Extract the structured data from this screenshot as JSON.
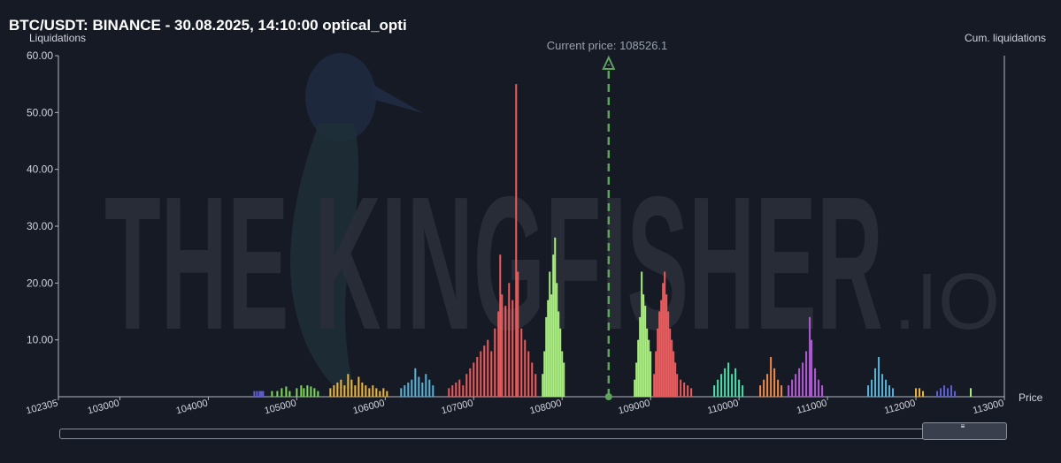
{
  "header": {
    "title": "BTC/USDT: BINANCE - 30.08.2025, 14:10:00 optical_opti"
  },
  "axes": {
    "y_label": "Liquidations",
    "y2_label": "Cum. liquidations",
    "x_label": "Price"
  },
  "watermark": {
    "text": "THE KINGFISHER",
    "suffix": ".IO"
  },
  "current_price_label": "Current price: 108526.1",
  "chart_data": {
    "type": "bar",
    "title": "BTC/USDT: BINANCE - 30.08.2025, 14:10:00 optical_opti",
    "xlabel": "Price",
    "ylabel": "Liquidations",
    "y2label": "Cum. liquidations",
    "xlim": [
      102305,
      113000
    ],
    "ylim": [
      0,
      60
    ],
    "yticks": [
      "10.00",
      "20.00",
      "30.00",
      "40.00",
      "50.00",
      "60.00"
    ],
    "xticks": [
      "102305",
      "103000",
      "104000",
      "105000",
      "106000",
      "107000",
      "108000",
      "109000",
      "110000",
      "111000",
      "112000",
      "113000"
    ],
    "current_price": 108526.1,
    "colors": {
      "purple_blue": "#5d5fd6",
      "green": "#7ed957",
      "yellow": "#f0b73a",
      "blue": "#5ab4d8",
      "red": "#f05a5a",
      "light_green": "#a8f07a",
      "teal": "#4fe0a8",
      "orange": "#f08a4a",
      "violet": "#b45ad8",
      "current_price": "#5fa35f"
    },
    "clusters": [
      {
        "color": "purple_blue",
        "points": [
          [
            104520,
            1
          ],
          [
            104550,
            1
          ],
          [
            104580,
            1
          ],
          [
            104600,
            1
          ],
          [
            104620,
            1
          ]
        ]
      },
      {
        "color": "green",
        "points": [
          [
            104720,
            1
          ],
          [
            104780,
            1
          ],
          [
            104830,
            1.5
          ],
          [
            104880,
            1.8
          ],
          [
            104920,
            1
          ],
          [
            105000,
            1.5
          ],
          [
            105050,
            2
          ],
          [
            105080,
            1.5
          ],
          [
            105120,
            2
          ],
          [
            105160,
            1.8
          ],
          [
            105200,
            1.5
          ],
          [
            105240,
            1
          ]
        ]
      },
      {
        "color": "yellow",
        "points": [
          [
            105380,
            1.5
          ],
          [
            105420,
            2
          ],
          [
            105460,
            2.5
          ],
          [
            105500,
            3
          ],
          [
            105540,
            2
          ],
          [
            105580,
            4
          ],
          [
            105620,
            3
          ],
          [
            105660,
            2
          ],
          [
            105700,
            3.5
          ],
          [
            105740,
            2.5
          ],
          [
            105780,
            2
          ],
          [
            105820,
            1.5
          ],
          [
            105860,
            2
          ],
          [
            105900,
            1.5
          ],
          [
            105940,
            1
          ],
          [
            105980,
            1.5
          ],
          [
            106020,
            1
          ]
        ]
      },
      {
        "color": "blue",
        "points": [
          [
            106180,
            1.5
          ],
          [
            106220,
            2
          ],
          [
            106260,
            2.5
          ],
          [
            106300,
            3
          ],
          [
            106340,
            5
          ],
          [
            106380,
            3.5
          ],
          [
            106420,
            2.5
          ],
          [
            106460,
            4
          ],
          [
            106500,
            3
          ],
          [
            106540,
            2
          ]
        ]
      },
      {
        "color": "red",
        "points": [
          [
            106720,
            1.5
          ],
          [
            106760,
            2
          ],
          [
            106800,
            2.5
          ],
          [
            106840,
            3
          ],
          [
            106880,
            2
          ],
          [
            106920,
            4
          ],
          [
            106960,
            5
          ],
          [
            107000,
            6
          ],
          [
            107040,
            7
          ],
          [
            107080,
            8
          ],
          [
            107120,
            9
          ],
          [
            107160,
            10
          ],
          [
            107200,
            8
          ],
          [
            107240,
            12
          ],
          [
            107280,
            15
          ],
          [
            107300,
            25
          ],
          [
            107320,
            18
          ],
          [
            107360,
            16
          ],
          [
            107400,
            20
          ],
          [
            107440,
            17
          ],
          [
            107480,
            55
          ],
          [
            107500,
            22
          ],
          [
            107540,
            12
          ],
          [
            107580,
            10
          ],
          [
            107620,
            8
          ],
          [
            107660,
            6
          ],
          [
            107700,
            4
          ]
        ]
      },
      {
        "color": "light_green",
        "points": [
          [
            107780,
            4
          ],
          [
            107800,
            8
          ],
          [
            107820,
            14
          ],
          [
            107840,
            17
          ],
          [
            107860,
            22
          ],
          [
            107880,
            18
          ],
          [
            107900,
            25
          ],
          [
            107920,
            28
          ],
          [
            107940,
            20
          ],
          [
            107960,
            15
          ],
          [
            107980,
            12
          ],
          [
            108000,
            8
          ],
          [
            108020,
            6
          ]
        ]
      },
      {
        "color": "light_green",
        "points": [
          [
            108820,
            3
          ],
          [
            108840,
            6
          ],
          [
            108860,
            10
          ],
          [
            108880,
            14
          ],
          [
            108900,
            22
          ],
          [
            108920,
            18
          ],
          [
            108940,
            16
          ],
          [
            108960,
            12
          ],
          [
            108980,
            10
          ],
          [
            109000,
            8
          ]
        ]
      },
      {
        "color": "red",
        "points": [
          [
            109040,
            4
          ],
          [
            109060,
            8
          ],
          [
            109080,
            12
          ],
          [
            109100,
            15
          ],
          [
            109120,
            17
          ],
          [
            109140,
            20
          ],
          [
            109160,
            22
          ],
          [
            109180,
            18
          ],
          [
            109200,
            15
          ],
          [
            109220,
            12
          ],
          [
            109240,
            10
          ],
          [
            109260,
            8
          ],
          [
            109280,
            6
          ],
          [
            109300,
            4
          ],
          [
            109340,
            3
          ],
          [
            109380,
            2.5
          ],
          [
            109420,
            2
          ],
          [
            109460,
            1.5
          ]
        ]
      },
      {
        "color": "teal",
        "points": [
          [
            109720,
            2
          ],
          [
            109760,
            3
          ],
          [
            109800,
            4
          ],
          [
            109840,
            5
          ],
          [
            109880,
            6
          ],
          [
            109920,
            4
          ],
          [
            109960,
            5
          ],
          [
            110000,
            3
          ],
          [
            110040,
            2
          ]
        ]
      },
      {
        "color": "orange",
        "points": [
          [
            110240,
            2
          ],
          [
            110280,
            3
          ],
          [
            110320,
            4
          ],
          [
            110360,
            7
          ],
          [
            110400,
            5
          ],
          [
            110440,
            3
          ],
          [
            110480,
            2
          ]
        ]
      },
      {
        "color": "violet",
        "points": [
          [
            110560,
            2
          ],
          [
            110600,
            3
          ],
          [
            110640,
            4
          ],
          [
            110680,
            5
          ],
          [
            110720,
            6
          ],
          [
            110760,
            8
          ],
          [
            110800,
            14
          ],
          [
            110820,
            10
          ],
          [
            110860,
            5
          ],
          [
            110900,
            3
          ],
          [
            110940,
            2
          ]
        ]
      },
      {
        "color": "blue",
        "points": [
          [
            111460,
            2
          ],
          [
            111500,
            3
          ],
          [
            111540,
            5
          ],
          [
            111580,
            7
          ],
          [
            111620,
            4
          ],
          [
            111660,
            3
          ],
          [
            111700,
            2
          ],
          [
            111740,
            1.5
          ]
        ]
      },
      {
        "color": "yellow",
        "points": [
          [
            112000,
            1.5
          ],
          [
            112040,
            1.5
          ],
          [
            112080,
            1
          ]
        ]
      },
      {
        "color": "purple_blue",
        "points": [
          [
            112240,
            1
          ],
          [
            112280,
            1.5
          ],
          [
            112320,
            2
          ],
          [
            112360,
            1.5
          ],
          [
            112400,
            2
          ],
          [
            112440,
            1
          ]
        ]
      },
      {
        "color": "light_green",
        "points": [
          [
            112620,
            1.5
          ]
        ]
      }
    ]
  }
}
